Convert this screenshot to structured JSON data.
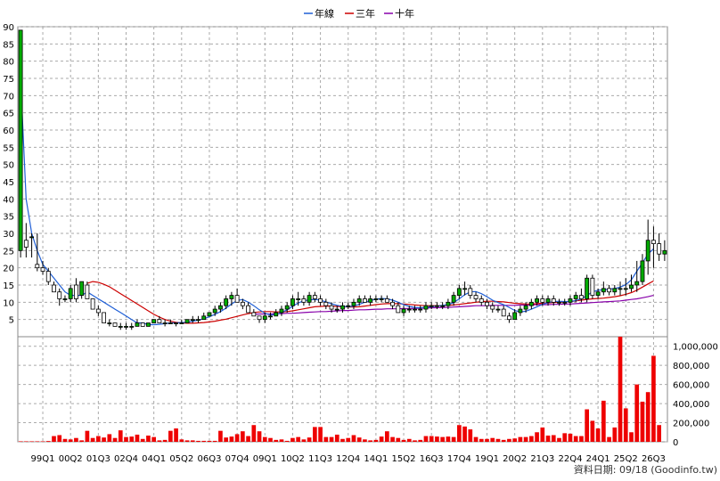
{
  "chart_data": {
    "type": "candlestick",
    "legend": [
      {
        "name": "年線",
        "color": "#1f5fd6"
      },
      {
        "name": "三年",
        "color": "#cc0000"
      },
      {
        "name": "十年",
        "color": "#8800aa"
      }
    ],
    "source_note": "資料日期: 09/18 (Goodinfo.tw)",
    "price_axis": {
      "ylim": [
        0,
        90
      ],
      "ticks": [
        5,
        10,
        15,
        20,
        25,
        30,
        35,
        40,
        45,
        50,
        55,
        60,
        65,
        70,
        75,
        80,
        85,
        90
      ]
    },
    "volume_axis": {
      "ylim": [
        0,
        1100000
      ],
      "ticks": [
        0,
        200000,
        400000,
        600000,
        800000,
        1000000
      ],
      "tick_labels": [
        "0",
        "200,000",
        "400,000",
        "600,000",
        "800,000",
        "1,000,000"
      ]
    },
    "x_tick_labels": [
      "99Q1",
      "00Q2",
      "01Q3",
      "02Q4",
      "04Q1",
      "05Q2",
      "06Q3",
      "07Q4",
      "09Q1",
      "10Q2",
      "11Q3",
      "12Q4",
      "14Q1",
      "15Q2",
      "16Q3",
      "17Q4",
      "19Q1",
      "20Q2",
      "21Q3",
      "22Q4",
      "24Q1",
      "25Q2",
      "26Q3"
    ],
    "x_tick_index": [
      4,
      9,
      14,
      19,
      24,
      29,
      34,
      39,
      44,
      49,
      54,
      59,
      64,
      69,
      74,
      79,
      84,
      89,
      94,
      99,
      104,
      109,
      114
    ],
    "candles": [
      [
        25,
        89,
        23,
        89
      ],
      [
        28,
        33,
        23,
        26
      ],
      [
        29,
        30,
        23,
        29
      ],
      [
        21,
        30,
        19,
        20
      ],
      [
        20,
        22,
        18,
        19
      ],
      [
        19,
        20,
        15,
        16
      ],
      [
        15,
        16,
        13,
        13
      ],
      [
        13,
        14,
        9,
        11
      ],
      [
        11,
        12,
        10,
        11
      ],
      [
        11,
        15,
        10,
        14
      ],
      [
        15,
        17,
        10,
        11
      ],
      [
        12,
        16,
        11,
        16
      ],
      [
        15,
        16,
        11,
        11
      ],
      [
        11,
        11,
        8,
        8
      ],
      [
        8,
        9,
        6,
        7
      ],
      [
        7,
        7,
        4,
        4
      ],
      [
        4,
        5,
        3,
        4
      ],
      [
        4,
        4,
        3,
        3
      ],
      [
        3,
        4,
        2,
        3
      ],
      [
        3,
        4,
        2,
        3
      ],
      [
        3,
        4,
        2,
        3
      ],
      [
        3,
        5,
        3,
        4
      ],
      [
        4,
        4,
        3,
        3
      ],
      [
        3,
        4,
        3,
        4
      ],
      [
        4,
        5,
        4,
        5
      ],
      [
        5,
        6,
        4,
        4
      ],
      [
        4,
        5,
        3,
        4
      ],
      [
        4,
        5,
        4,
        4
      ],
      [
        4,
        4,
        3,
        4
      ],
      [
        4,
        5,
        4,
        4
      ],
      [
        4,
        5,
        4,
        5
      ],
      [
        5,
        6,
        4,
        5
      ],
      [
        5,
        6,
        4,
        5
      ],
      [
        5,
        7,
        5,
        6
      ],
      [
        6,
        7,
        6,
        7
      ],
      [
        7,
        9,
        6,
        8
      ],
      [
        8,
        10,
        7,
        9
      ],
      [
        9,
        12,
        8,
        11
      ],
      [
        11,
        13,
        9,
        12
      ],
      [
        12,
        14,
        10,
        10
      ],
      [
        10,
        11,
        8,
        9
      ],
      [
        9,
        10,
        7,
        7
      ],
      [
        7,
        8,
        6,
        6
      ],
      [
        6,
        6,
        4,
        5
      ],
      [
        5,
        7,
        4,
        6
      ],
      [
        6,
        7,
        5,
        6
      ],
      [
        6,
        8,
        6,
        7
      ],
      [
        7,
        9,
        6,
        8
      ],
      [
        8,
        10,
        7,
        9
      ],
      [
        9,
        12,
        8,
        11
      ],
      [
        11,
        13,
        9,
        11
      ],
      [
        11,
        12,
        9,
        10
      ],
      [
        10,
        13,
        9,
        12
      ],
      [
        12,
        13,
        10,
        11
      ],
      [
        11,
        12,
        9,
        10
      ],
      [
        10,
        11,
        8,
        9
      ],
      [
        9,
        10,
        7,
        8
      ],
      [
        8,
        9,
        7,
        8
      ],
      [
        8,
        10,
        7,
        9
      ],
      [
        9,
        10,
        8,
        9
      ],
      [
        9,
        11,
        8,
        10
      ],
      [
        10,
        12,
        9,
        11
      ],
      [
        11,
        12,
        10,
        10
      ],
      [
        10,
        12,
        9,
        11
      ],
      [
        11,
        12,
        10,
        11
      ],
      [
        11,
        12,
        10,
        11
      ],
      [
        11,
        12,
        10,
        10
      ],
      [
        10,
        11,
        8,
        9
      ],
      [
        9,
        10,
        7,
        7
      ],
      [
        7,
        9,
        6,
        8
      ],
      [
        8,
        9,
        7,
        8
      ],
      [
        8,
        9,
        7,
        8
      ],
      [
        8,
        9,
        7,
        8
      ],
      [
        8,
        10,
        7,
        9
      ],
      [
        9,
        10,
        8,
        9
      ],
      [
        9,
        10,
        8,
        9
      ],
      [
        9,
        10,
        8,
        9
      ],
      [
        9,
        11,
        8,
        10
      ],
      [
        10,
        13,
        9,
        12
      ],
      [
        12,
        15,
        11,
        14
      ],
      [
        14,
        16,
        12,
        14
      ],
      [
        14,
        15,
        11,
        12
      ],
      [
        12,
        13,
        10,
        11
      ],
      [
        11,
        12,
        9,
        10
      ],
      [
        10,
        11,
        8,
        9
      ],
      [
        9,
        10,
        7,
        8
      ],
      [
        8,
        9,
        7,
        8
      ],
      [
        8,
        9,
        6,
        6
      ],
      [
        6,
        7,
        4,
        5
      ],
      [
        5,
        8,
        5,
        7
      ],
      [
        7,
        9,
        6,
        8
      ],
      [
        8,
        10,
        7,
        9
      ],
      [
        9,
        11,
        8,
        10
      ],
      [
        10,
        12,
        9,
        11
      ],
      [
        11,
        12,
        9,
        10
      ],
      [
        10,
        12,
        9,
        11
      ],
      [
        11,
        12,
        9,
        10
      ],
      [
        10,
        11,
        9,
        10
      ],
      [
        10,
        11,
        9,
        10
      ],
      [
        10,
        12,
        9,
        11
      ],
      [
        11,
        13,
        10,
        12
      ],
      [
        12,
        14,
        10,
        11
      ],
      [
        11,
        18,
        10,
        17
      ],
      [
        17,
        18,
        11,
        12
      ],
      [
        12,
        14,
        11,
        13
      ],
      [
        13,
        16,
        12,
        14
      ],
      [
        14,
        15,
        12,
        13
      ],
      [
        13,
        15,
        12,
        14
      ],
      [
        14,
        16,
        12,
        14
      ],
      [
        14,
        17,
        12,
        14
      ],
      [
        14,
        18,
        13,
        15
      ],
      [
        15,
        22,
        13,
        16
      ],
      [
        16,
        24,
        15,
        22
      ],
      [
        22,
        34,
        18,
        28
      ],
      [
        28,
        32,
        20,
        27
      ],
      [
        27,
        30,
        22,
        24
      ],
      [
        24,
        28,
        22,
        25
      ]
    ],
    "line_yearly": [
      75,
      40,
      30,
      25,
      21,
      19,
      17,
      15,
      13,
      12,
      12,
      12,
      13,
      12,
      11,
      10,
      9,
      8,
      7,
      6,
      5,
      4,
      4,
      3.5,
      3.5,
      3.6,
      3.8,
      4,
      4,
      4.1,
      4.2,
      4.5,
      4.8,
      5.2,
      5.8,
      6.5,
      7.3,
      8.3,
      9.5,
      10.5,
      10.8,
      10,
      9,
      7.8,
      6.8,
      6.3,
      6.5,
      7,
      7.8,
      8.8,
      9.8,
      10.4,
      10.7,
      10.8,
      10.6,
      10.1,
      9.6,
      9.1,
      8.8,
      8.7,
      8.9,
      9.4,
      10,
      10.5,
      10.9,
      11.1,
      11,
      10.6,
      10,
      9.3,
      8.8,
      8.5,
      8.4,
      8.5,
      8.7,
      8.9,
      9.1,
      9.3,
      9.9,
      11,
      12.2,
      13,
      13.1,
      12.5,
      11.6,
      10.6,
      9.9,
      9.3,
      8.5,
      7.6,
      7.2,
      7.4,
      8,
      8.7,
      9.4,
      9.9,
      10.2,
      10.3,
      10.2,
      10.2,
      10.5,
      11,
      12,
      13,
      13.5,
      13.6,
      13.8,
      14,
      14.4,
      15.1,
      16.5,
      19,
      21.5,
      24,
      25.5
    ],
    "line_3yr": [
      null,
      null,
      null,
      null,
      null,
      null,
      null,
      null,
      null,
      null,
      null,
      null,
      15.5,
      16,
      15.8,
      15.2,
      14.5,
      13.5,
      12.5,
      11.5,
      10.5,
      9.5,
      8.5,
      7.5,
      6.5,
      5.7,
      5,
      4.5,
      4.2,
      4,
      3.9,
      3.9,
      4,
      4.1,
      4.3,
      4.5,
      4.8,
      5.1,
      5.5,
      5.9,
      6.3,
      6.7,
      7,
      7.2,
      7.3,
      7.3,
      7.2,
      7.2,
      7.3,
      7.5,
      7.8,
      8.1,
      8.4,
      8.7,
      8.8,
      8.9,
      8.9,
      8.8,
      8.7,
      8.6,
      8.6,
      8.7,
      8.9,
      9.1,
      9.3,
      9.5,
      9.6,
      9.6,
      9.6,
      9.5,
      9.4,
      9.2,
      9.1,
      9,
      9,
      9,
      9,
      9.1,
      9.2,
      9.4,
      9.6,
      9.8,
      10,
      10.2,
      10.3,
      10.3,
      10.2,
      10.1,
      9.9,
      9.7,
      9.6,
      9.5,
      9.5,
      9.6,
      9.7,
      9.8,
      9.9,
      10,
      10.1,
      10.2,
      10.4,
      10.6,
      10.8,
      11,
      11.1,
      11.2,
      11.4,
      11.6,
      11.9,
      12.3,
      12.8,
      13.5,
      14.4,
      15.3,
      16.2
    ],
    "line_10yr": [
      null,
      null,
      null,
      null,
      null,
      null,
      null,
      null,
      null,
      null,
      null,
      null,
      null,
      null,
      null,
      null,
      null,
      null,
      null,
      null,
      null,
      null,
      null,
      null,
      null,
      null,
      null,
      null,
      null,
      null,
      null,
      null,
      null,
      null,
      null,
      null,
      null,
      null,
      null,
      null,
      null,
      null,
      6.5,
      6.6,
      6.6,
      6.6,
      6.7,
      6.7,
      6.8,
      6.8,
      6.9,
      7,
      7.1,
      7.2,
      7.3,
      7.3,
      7.4,
      7.5,
      7.6,
      7.6,
      7.7,
      7.8,
      7.8,
      7.9,
      8,
      8,
      8.1,
      8.1,
      8.1,
      8.2,
      8.2,
      8.2,
      8.3,
      8.3,
      8.4,
      8.4,
      8.5,
      8.5,
      8.6,
      8.7,
      8.8,
      8.9,
      9,
      9,
      9,
      9.1,
      9.1,
      9.1,
      9.1,
      9.1,
      9.2,
      9.2,
      9.2,
      9.3,
      9.3,
      9.3,
      9.4,
      9.4,
      9.5,
      9.5,
      9.6,
      9.7,
      9.8,
      9.9,
      10,
      10.1,
      10.2,
      10.3,
      10.4,
      10.6,
      10.8,
      11,
      11.3,
      11.6,
      12
    ],
    "volumes": [
      5000,
      5000,
      5000,
      5000,
      5000,
      8000,
      60000,
      70000,
      30000,
      25000,
      40000,
      15000,
      115000,
      40000,
      60000,
      45000,
      80000,
      40000,
      120000,
      50000,
      55000,
      75000,
      30000,
      65000,
      50000,
      15000,
      20000,
      115000,
      140000,
      25000,
      15000,
      15000,
      10000,
      10000,
      10000,
      10000,
      115000,
      45000,
      55000,
      80000,
      110000,
      60000,
      175000,
      110000,
      50000,
      40000,
      20000,
      25000,
      10000,
      40000,
      50000,
      25000,
      45000,
      155000,
      155000,
      50000,
      50000,
      75000,
      30000,
      40000,
      70000,
      45000,
      25000,
      15000,
      20000,
      55000,
      110000,
      50000,
      40000,
      20000,
      30000,
      15000,
      20000,
      60000,
      60000,
      55000,
      50000,
      55000,
      50000,
      175000,
      160000,
      130000,
      50000,
      30000,
      30000,
      40000,
      30000,
      20000,
      30000,
      35000,
      50000,
      50000,
      60000,
      100000,
      150000,
      65000,
      70000,
      40000,
      90000,
      85000,
      60000,
      60000,
      340000,
      220000,
      140000,
      430000,
      50000,
      150000,
      1100000,
      350000,
      100000,
      600000,
      420000,
      520000,
      900000,
      175000
    ]
  }
}
